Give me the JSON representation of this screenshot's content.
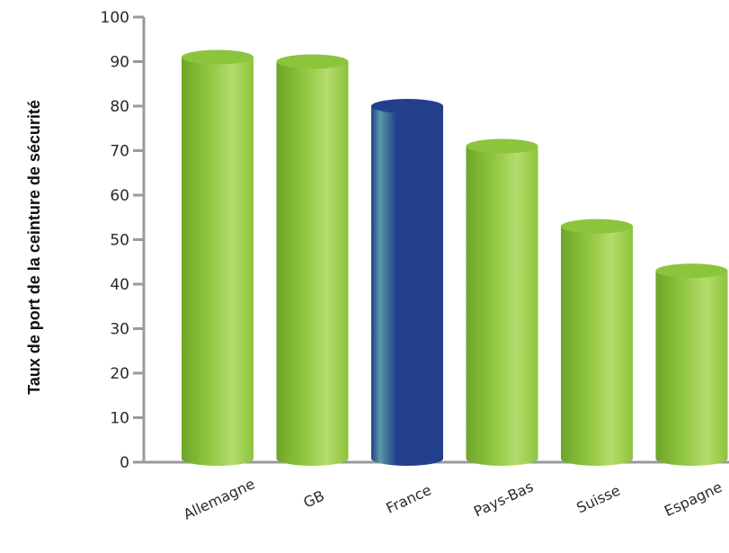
{
  "chart_data": {
    "type": "bar",
    "categories": [
      "Allemagne",
      "GB",
      "France",
      "Pays-Bas",
      "Suisse",
      "Espagne"
    ],
    "values": [
      91,
      90,
      80,
      71,
      53,
      43
    ],
    "highlight_category": "France",
    "ylabel": "Taux de port de la ceinture de sécurité",
    "xlabel": "",
    "ylim": [
      0,
      100
    ],
    "yticks": [
      0,
      10,
      20,
      30,
      40,
      50,
      60,
      70,
      80,
      90,
      100
    ],
    "grid": false,
    "colors": {
      "default_bar": "#8cc43c",
      "default_bar_dark": "#6ea52a",
      "default_bar_light": "#b4dc6c",
      "highlight_bar": "#233f8c",
      "highlight_bar_light": "#5a9aa6",
      "axis": "#9a9a9a"
    }
  }
}
